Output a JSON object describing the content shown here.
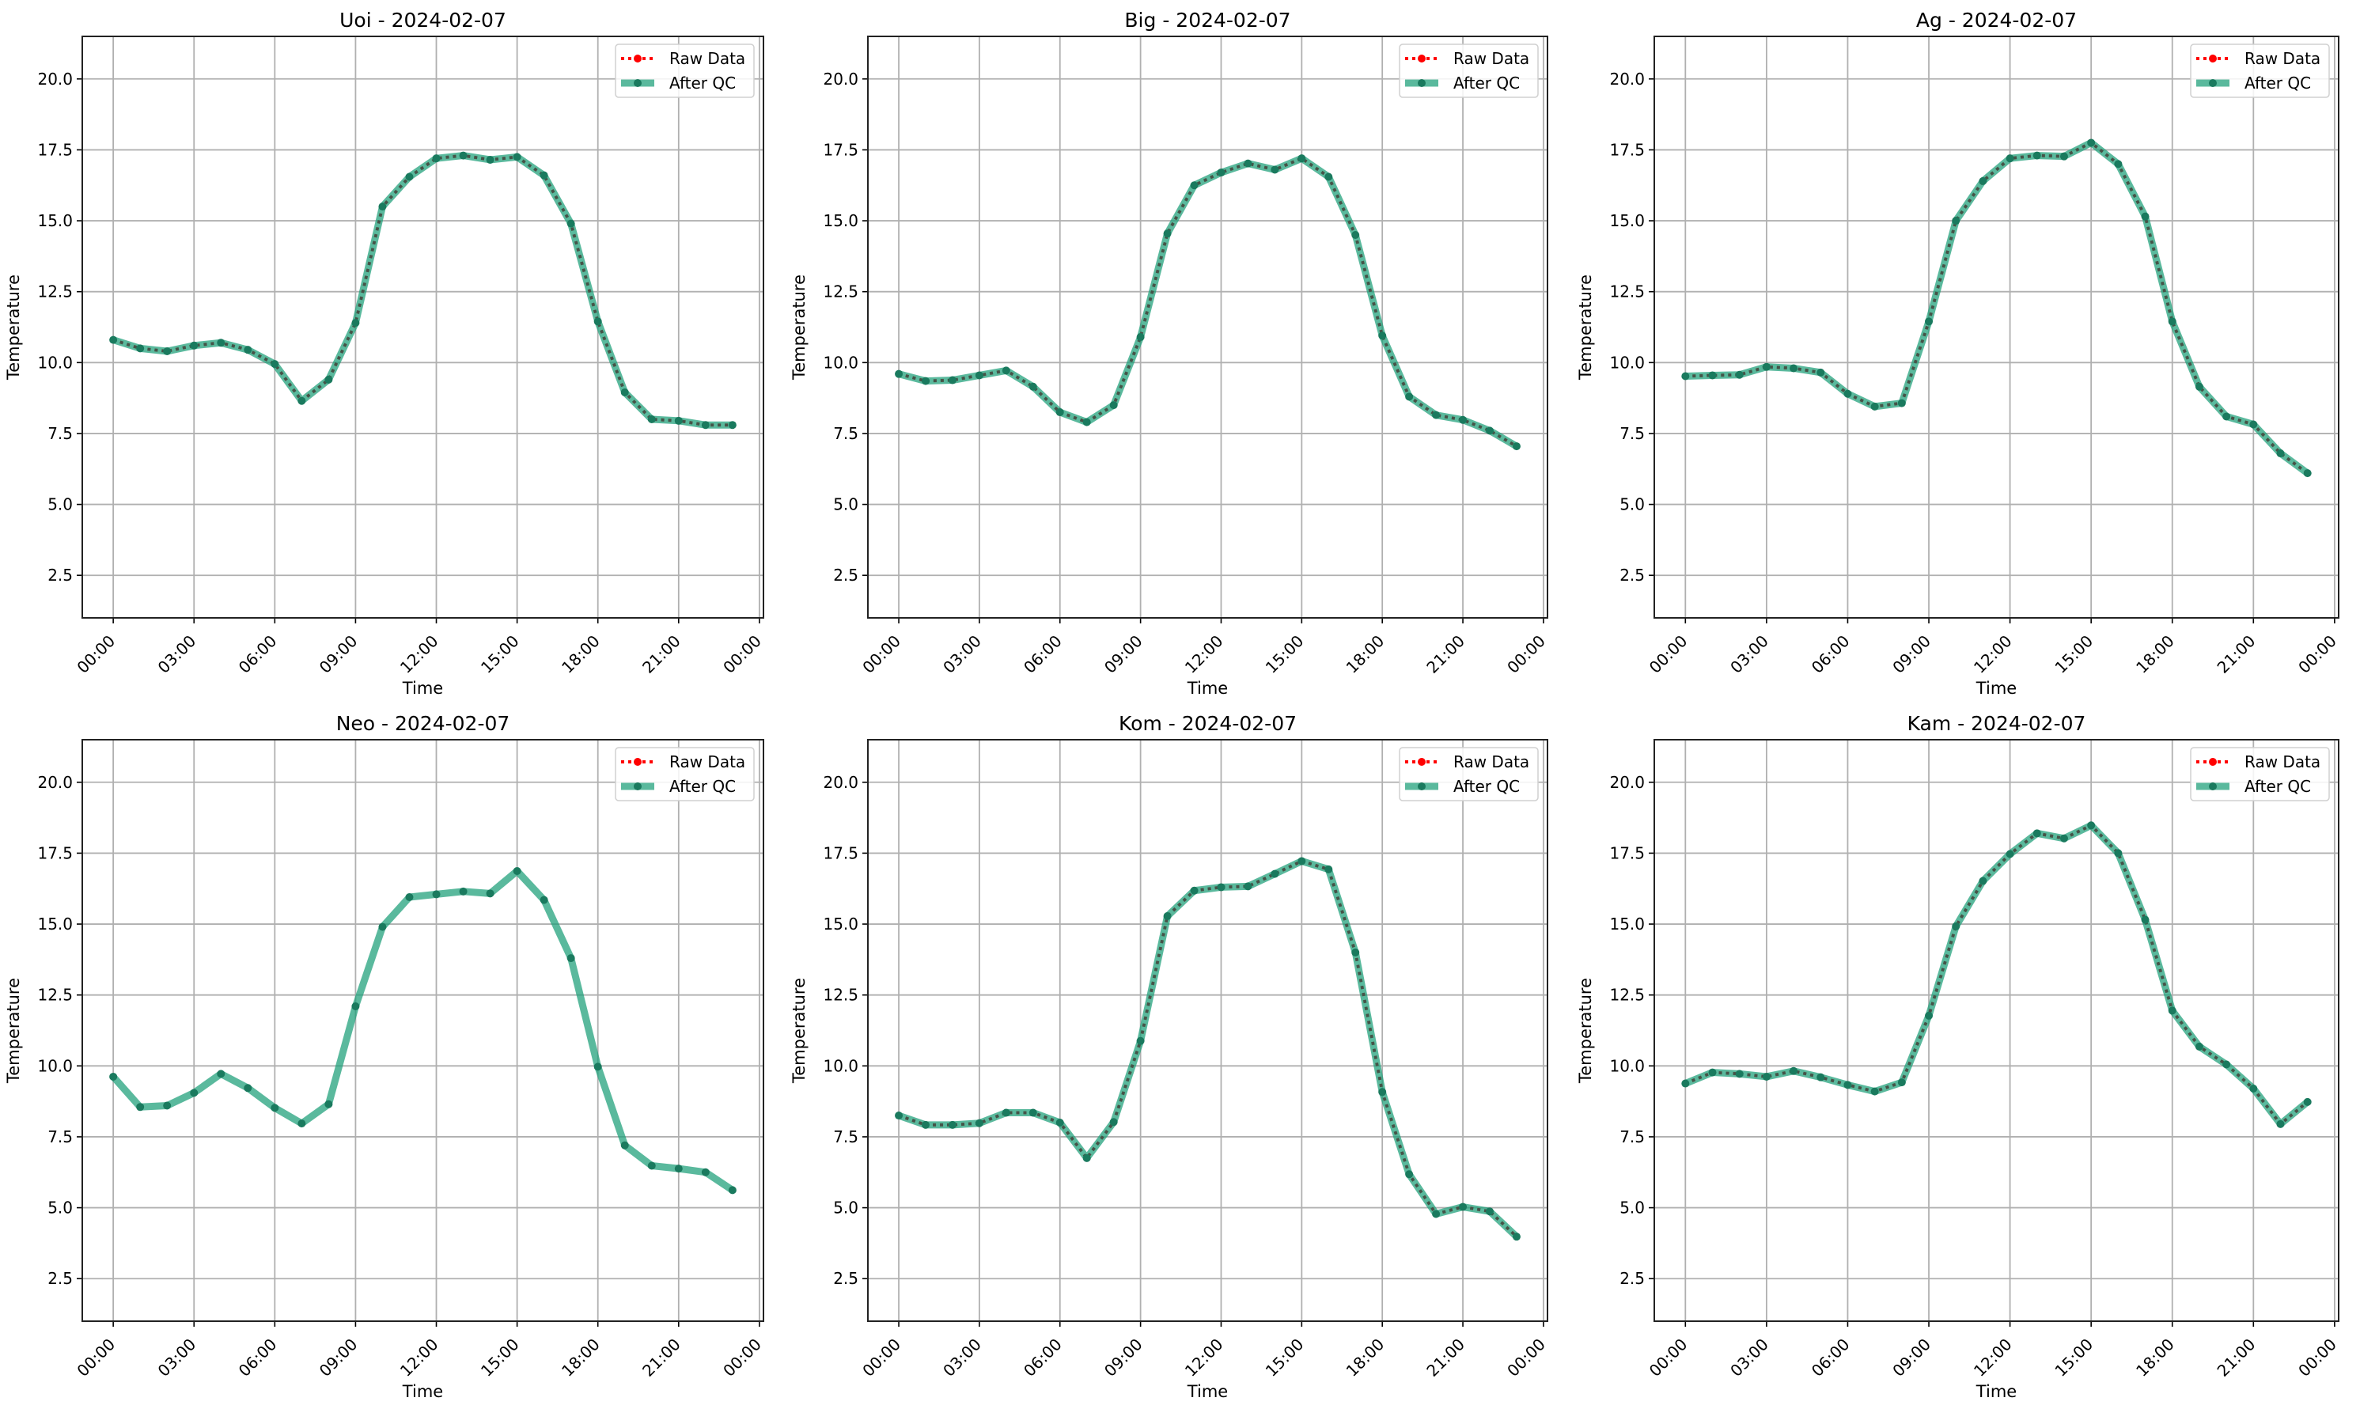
{
  "figure": {
    "legend_labels": [
      "Raw Data",
      "After QC"
    ],
    "colors": {
      "raw": "#ff0000",
      "qc": "#1b9e77",
      "qc_marker": "#1a7a5e",
      "grid": "#b0b0b0"
    }
  },
  "chart_data": [
    {
      "type": "line",
      "title": "Uoi - 2024-02-07",
      "xlabel": "Time",
      "ylabel": "Temperature",
      "x_hours": [
        0,
        1,
        2,
        3,
        4,
        5,
        6,
        7,
        8,
        9,
        10,
        11,
        12,
        13,
        14,
        15,
        16,
        17,
        18,
        19,
        20,
        21,
        22,
        23
      ],
      "xlim_hours": [
        -1.15,
        24.15
      ],
      "ylim": [
        1.0,
        21.5
      ],
      "x_ticks_hours": [
        0,
        3,
        6,
        9,
        12,
        15,
        18,
        21,
        24
      ],
      "x_tick_labels": [
        "00:00",
        "03:00",
        "06:00",
        "09:00",
        "12:00",
        "15:00",
        "18:00",
        "21:00",
        "00:00"
      ],
      "y_ticks": [
        2.5,
        5.0,
        7.5,
        10.0,
        12.5,
        15.0,
        17.5,
        20.0
      ],
      "y_tick_labels": [
        "2.5",
        "5.0",
        "7.5",
        "10.0",
        "12.5",
        "15.0",
        "17.5",
        "20.0"
      ],
      "grid": true,
      "legend": "top-right",
      "series": [
        {
          "name": "Raw Data",
          "values": [
            10.8,
            10.5,
            10.4,
            10.6,
            10.7,
            10.45,
            9.95,
            8.65,
            9.4,
            11.4,
            15.5,
            16.55,
            17.2,
            17.3,
            17.15,
            17.25,
            16.6,
            14.9,
            11.45,
            8.95,
            8.0,
            7.95,
            7.8,
            7.8
          ]
        },
        {
          "name": "After QC",
          "values": [
            10.8,
            10.5,
            10.4,
            10.6,
            10.7,
            10.45,
            9.95,
            8.65,
            9.4,
            11.4,
            15.5,
            16.55,
            17.2,
            17.3,
            17.15,
            17.25,
            16.6,
            14.9,
            11.45,
            8.95,
            8.0,
            7.95,
            7.8,
            7.8
          ]
        }
      ]
    },
    {
      "type": "line",
      "title": "Big - 2024-02-07",
      "xlabel": "Time",
      "ylabel": "Temperature",
      "x_hours": [
        0,
        1,
        2,
        3,
        4,
        5,
        6,
        7,
        8,
        9,
        10,
        11,
        12,
        13,
        14,
        15,
        16,
        17,
        18,
        19,
        20,
        21,
        22,
        23
      ],
      "xlim_hours": [
        -1.15,
        24.15
      ],
      "ylim": [
        1.0,
        21.5
      ],
      "x_ticks_hours": [
        0,
        3,
        6,
        9,
        12,
        15,
        18,
        21,
        24
      ],
      "x_tick_labels": [
        "00:00",
        "03:00",
        "06:00",
        "09:00",
        "12:00",
        "15:00",
        "18:00",
        "21:00",
        "00:00"
      ],
      "y_ticks": [
        2.5,
        5.0,
        7.5,
        10.0,
        12.5,
        15.0,
        17.5,
        20.0
      ],
      "y_tick_labels": [
        "2.5",
        "5.0",
        "7.5",
        "10.0",
        "12.5",
        "15.0",
        "17.5",
        "20.0"
      ],
      "grid": true,
      "legend": "top-right",
      "series": [
        {
          "name": "Raw Data",
          "values": [
            9.6,
            9.35,
            9.38,
            9.55,
            9.72,
            9.15,
            8.25,
            7.9,
            8.5,
            10.9,
            14.55,
            16.25,
            16.7,
            17.02,
            16.8,
            17.2,
            16.55,
            14.5,
            10.95,
            8.8,
            8.15,
            7.98,
            7.6,
            7.05
          ]
        },
        {
          "name": "After QC",
          "values": [
            9.6,
            9.35,
            9.38,
            9.55,
            9.72,
            9.15,
            8.25,
            7.9,
            8.5,
            10.9,
            14.55,
            16.25,
            16.7,
            17.02,
            16.8,
            17.2,
            16.55,
            14.5,
            10.95,
            8.8,
            8.15,
            7.98,
            7.6,
            7.05
          ]
        }
      ]
    },
    {
      "type": "line",
      "title": "Ag - 2024-02-07",
      "xlabel": "Time",
      "ylabel": "Temperature",
      "x_hours": [
        0,
        1,
        2,
        3,
        4,
        5,
        6,
        7,
        8,
        9,
        10,
        11,
        12,
        13,
        14,
        15,
        16,
        17,
        18,
        19,
        20,
        21,
        22,
        23
      ],
      "xlim_hours": [
        -1.15,
        24.15
      ],
      "ylim": [
        1.0,
        21.5
      ],
      "x_ticks_hours": [
        0,
        3,
        6,
        9,
        12,
        15,
        18,
        21,
        24
      ],
      "x_tick_labels": [
        "00:00",
        "03:00",
        "06:00",
        "09:00",
        "12:00",
        "15:00",
        "18:00",
        "21:00",
        "00:00"
      ],
      "y_ticks": [
        2.5,
        5.0,
        7.5,
        10.0,
        12.5,
        15.0,
        17.5,
        20.0
      ],
      "y_tick_labels": [
        "2.5",
        "5.0",
        "7.5",
        "10.0",
        "12.5",
        "15.0",
        "17.5",
        "20.0"
      ],
      "grid": true,
      "legend": "top-right",
      "series": [
        {
          "name": "Raw Data",
          "values": [
            9.52,
            9.55,
            9.57,
            9.85,
            9.8,
            9.65,
            8.9,
            8.45,
            8.57,
            11.45,
            15.0,
            16.4,
            17.2,
            17.3,
            17.27,
            17.75,
            17.0,
            15.15,
            11.45,
            9.15,
            8.1,
            7.82,
            6.8,
            6.1
          ]
        },
        {
          "name": "After QC",
          "values": [
            9.52,
            9.55,
            9.57,
            9.85,
            9.8,
            9.65,
            8.9,
            8.45,
            8.57,
            11.45,
            15.0,
            16.4,
            17.2,
            17.3,
            17.27,
            17.75,
            17.0,
            15.15,
            11.45,
            9.15,
            8.1,
            7.82,
            6.8,
            6.1
          ]
        }
      ]
    },
    {
      "type": "line",
      "title": "Neo - 2024-02-07",
      "xlabel": "Time",
      "ylabel": "Temperature",
      "x_hours": [
        0,
        1,
        2,
        3,
        4,
        5,
        6,
        7,
        8,
        9,
        10,
        11,
        12,
        13,
        14,
        15,
        16,
        17,
        18,
        19,
        20,
        21,
        22,
        23
      ],
      "xlim_hours": [
        -1.15,
        24.15
      ],
      "ylim": [
        1.0,
        21.5
      ],
      "x_ticks_hours": [
        0,
        3,
        6,
        9,
        12,
        15,
        18,
        21,
        24
      ],
      "x_tick_labels": [
        "00:00",
        "03:00",
        "06:00",
        "09:00",
        "12:00",
        "15:00",
        "18:00",
        "21:00",
        "00:00"
      ],
      "y_ticks": [
        2.5,
        5.0,
        7.5,
        10.0,
        12.5,
        15.0,
        17.5,
        20.0
      ],
      "y_tick_labels": [
        "2.5",
        "5.0",
        "7.5",
        "10.0",
        "12.5",
        "15.0",
        "17.5",
        "20.0"
      ],
      "grid": true,
      "legend": "top-right",
      "series": [
        {
          "name": "Raw Data",
          "values": []
        },
        {
          "name": "After QC",
          "values": [
            9.62,
            8.55,
            8.6,
            9.05,
            9.72,
            9.22,
            8.52,
            7.97,
            8.65,
            12.1,
            14.9,
            15.95,
            16.05,
            16.15,
            16.08,
            16.87,
            15.85,
            13.8,
            9.97,
            7.2,
            6.48,
            6.38,
            6.25,
            5.62
          ]
        }
      ]
    },
    {
      "type": "line",
      "title": "Kom - 2024-02-07",
      "xlabel": "Time",
      "ylabel": "Temperature",
      "x_hours": [
        0,
        1,
        2,
        3,
        4,
        5,
        6,
        7,
        8,
        9,
        10,
        11,
        12,
        13,
        14,
        15,
        16,
        17,
        18,
        19,
        20,
        21,
        22,
        23
      ],
      "xlim_hours": [
        -1.15,
        24.15
      ],
      "ylim": [
        1.0,
        21.5
      ],
      "x_ticks_hours": [
        0,
        3,
        6,
        9,
        12,
        15,
        18,
        21,
        24
      ],
      "x_tick_labels": [
        "00:00",
        "03:00",
        "06:00",
        "09:00",
        "12:00",
        "15:00",
        "18:00",
        "21:00",
        "00:00"
      ],
      "y_ticks": [
        2.5,
        5.0,
        7.5,
        10.0,
        12.5,
        15.0,
        17.5,
        20.0
      ],
      "y_tick_labels": [
        "2.5",
        "5.0",
        "7.5",
        "10.0",
        "12.5",
        "15.0",
        "17.5",
        "20.0"
      ],
      "grid": true,
      "legend": "top-right",
      "series": [
        {
          "name": "Raw Data",
          "values": [
            8.25,
            7.92,
            7.92,
            7.98,
            8.35,
            8.35,
            8.0,
            6.75,
            8.02,
            10.88,
            15.28,
            16.18,
            16.3,
            16.33,
            16.77,
            17.22,
            16.93,
            14.0,
            9.08,
            6.18,
            4.78,
            5.03,
            4.87,
            3.98
          ]
        },
        {
          "name": "After QC",
          "values": [
            8.25,
            7.92,
            7.92,
            7.98,
            8.35,
            8.35,
            8.0,
            6.75,
            8.02,
            10.88,
            15.28,
            16.18,
            16.3,
            16.33,
            16.77,
            17.22,
            16.93,
            14.0,
            9.08,
            6.18,
            4.78,
            5.03,
            4.87,
            3.98
          ]
        }
      ]
    },
    {
      "type": "line",
      "title": "Kam - 2024-02-07",
      "xlabel": "Time",
      "ylabel": "Temperature",
      "x_hours": [
        0,
        1,
        2,
        3,
        4,
        5,
        6,
        7,
        8,
        9,
        10,
        11,
        12,
        13,
        14,
        15,
        16,
        17,
        18,
        19,
        20,
        21,
        22,
        23
      ],
      "xlim_hours": [
        -1.15,
        24.15
      ],
      "ylim": [
        1.0,
        21.5
      ],
      "x_ticks_hours": [
        0,
        3,
        6,
        9,
        12,
        15,
        18,
        21,
        24
      ],
      "x_tick_labels": [
        "00:00",
        "03:00",
        "06:00",
        "09:00",
        "12:00",
        "15:00",
        "18:00",
        "21:00",
        "00:00"
      ],
      "y_ticks": [
        2.5,
        5.0,
        7.5,
        10.0,
        12.5,
        15.0,
        17.5,
        20.0
      ],
      "y_tick_labels": [
        "2.5",
        "5.0",
        "7.5",
        "10.0",
        "12.5",
        "15.0",
        "17.5",
        "20.0"
      ],
      "grid": true,
      "legend": "top-right",
      "series": [
        {
          "name": "Raw Data",
          "values": [
            9.38,
            9.77,
            9.72,
            9.62,
            9.82,
            9.6,
            9.33,
            9.1,
            9.42,
            11.77,
            14.92,
            16.52,
            17.47,
            18.2,
            18.02,
            18.48,
            17.5,
            15.15,
            11.95,
            10.68,
            10.05,
            9.2,
            7.95,
            8.73
          ]
        },
        {
          "name": "After QC",
          "values": [
            9.38,
            9.77,
            9.72,
            9.62,
            9.82,
            9.6,
            9.33,
            9.1,
            9.42,
            11.77,
            14.92,
            16.52,
            17.47,
            18.2,
            18.02,
            18.48,
            17.5,
            15.15,
            11.95,
            10.68,
            10.05,
            9.2,
            7.95,
            8.73
          ]
        }
      ]
    }
  ]
}
